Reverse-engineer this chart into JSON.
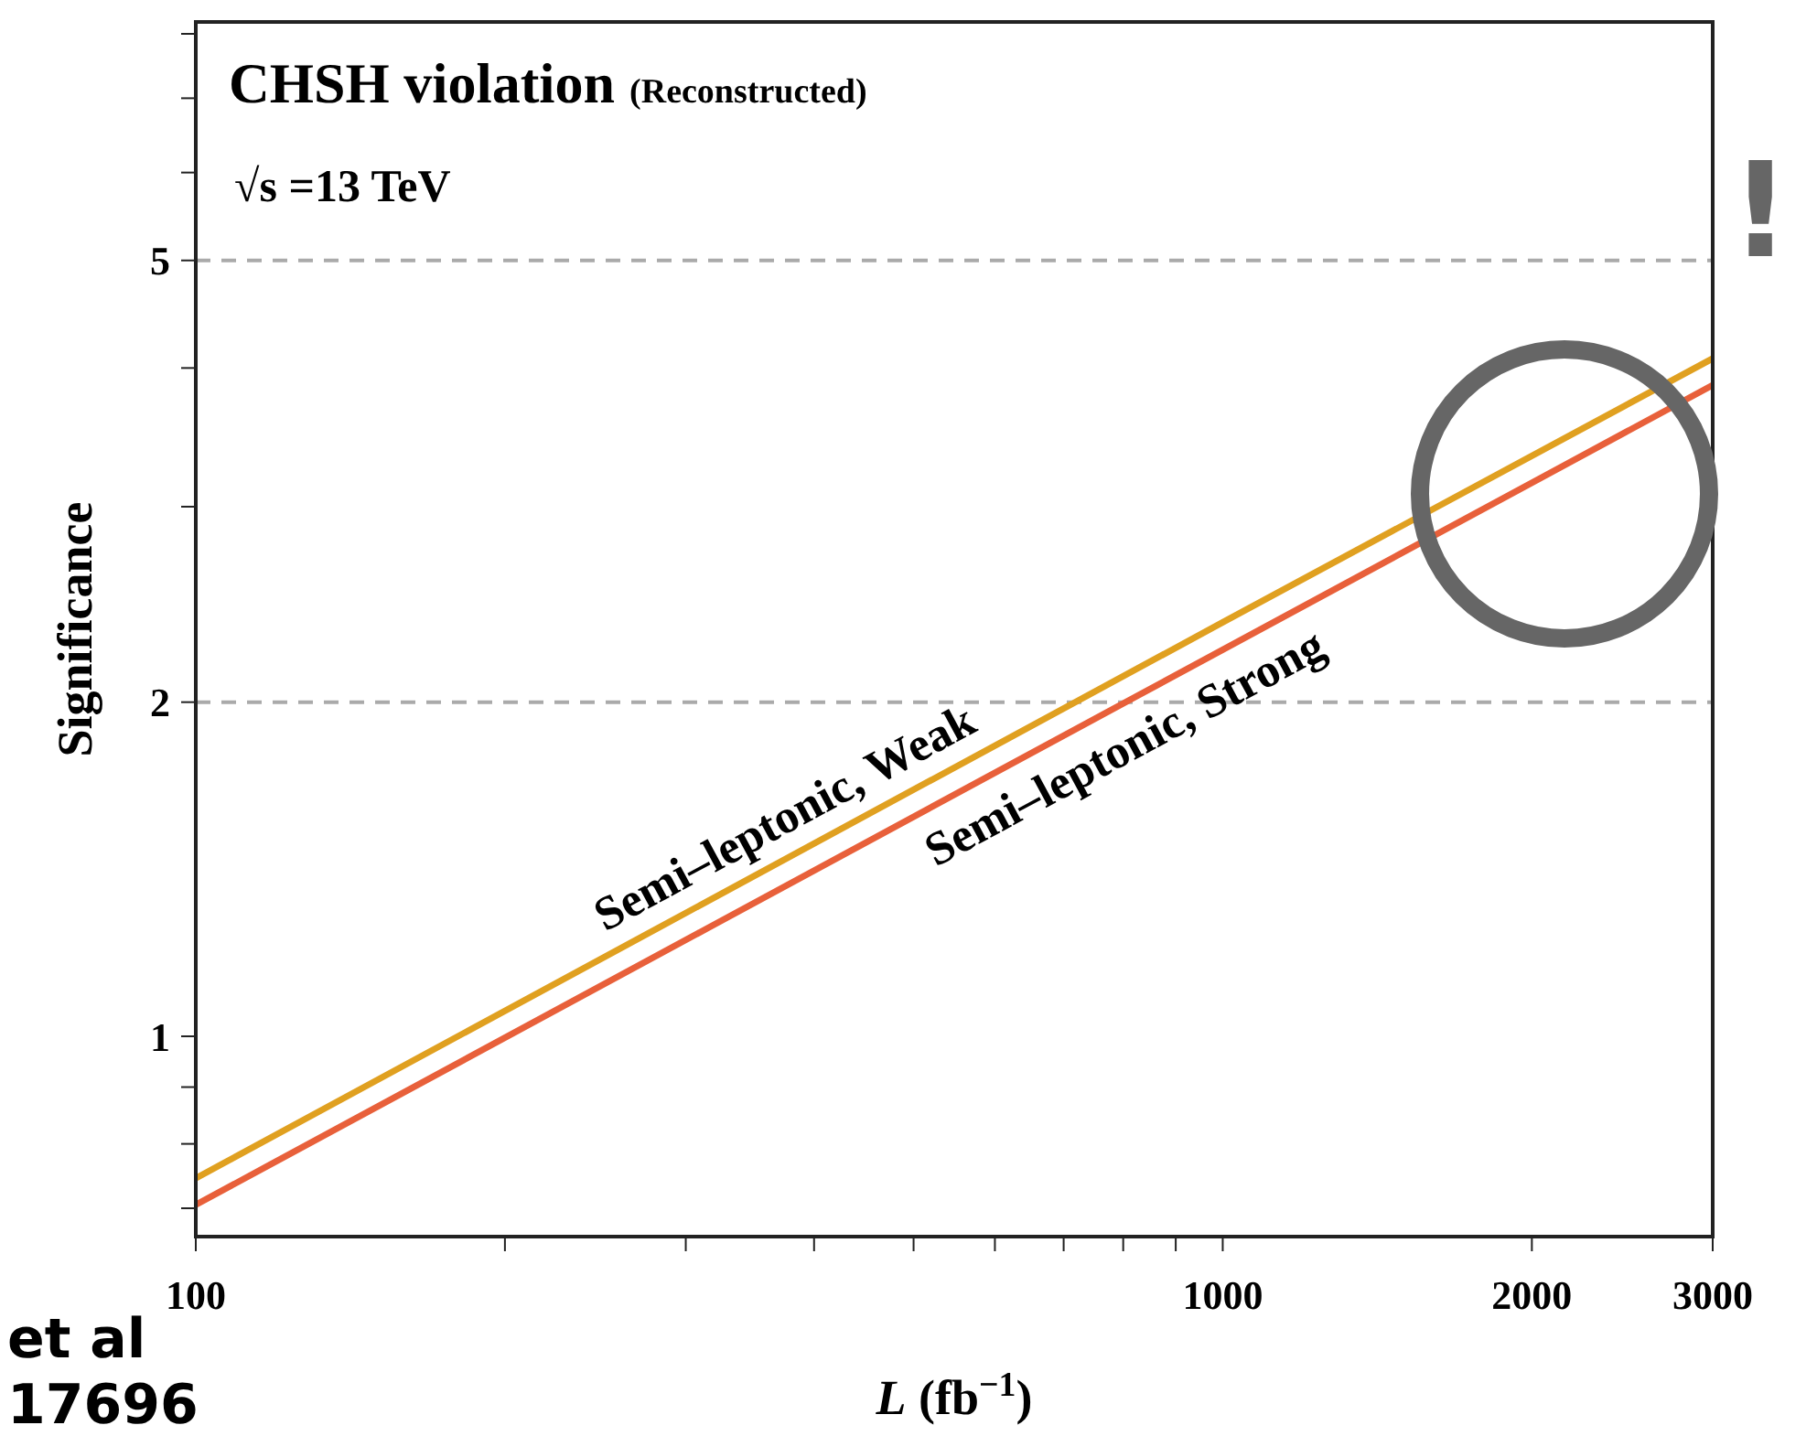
{
  "chart_data": {
    "type": "line",
    "title": "CHSH violation",
    "subtitle": "(Reconstructed)",
    "xlabel": "L (fb$^{−1}$)",
    "ylabel": "Significance",
    "annotations": [
      "√s =13 TeV",
      "!",
      "et al",
      "17696"
    ],
    "log": "xy",
    "xlim": [
      100,
      3000
    ],
    "xticks": [
      100,
      {
        "value": 200,
        "label": null
      },
      {
        "value": 300,
        "label": null
      },
      {
        "value": 400,
        "label": null
      },
      {
        "value": 500,
        "label": null
      },
      {
        "value": 600,
        "label": null
      },
      {
        "value": 700,
        "label": null
      },
      {
        "value": 800,
        "label": null
      },
      {
        "value": 900,
        "label": null
      },
      1000,
      2000,
      3000
    ],
    "ylim": [
      0.66,
      8.2
    ],
    "yticks": [
      {
        "value": 0.7,
        "label": null
      },
      {
        "value": 0.8,
        "label": null
      },
      {
        "value": 0.9,
        "label": null
      },
      1,
      2,
      {
        "value": 3,
        "label": null
      },
      {
        "value": 4,
        "label": null
      },
      5,
      {
        "value": 6,
        "label": null
      },
      {
        "value": 7,
        "label": null
      },
      {
        "value": 8,
        "label": null
      }
    ],
    "x": [
      100,
      1000,
      3000
    ],
    "series": [
      {
        "name": "Semi–leptonic, Weak",
        "color": "#e0a020",
        "values": [
          0.745,
          2.36,
          4.08
        ]
      },
      {
        "name": "Semi–leptonic, Strong",
        "color": "#e8603a",
        "values": [
          0.705,
          2.23,
          3.86
        ]
      }
    ],
    "ref_lines": [
      {
        "axis": "y",
        "value": 5,
        "label": null,
        "color": "#aaaaaa",
        "line_style": "dashed"
      },
      {
        "axis": "y",
        "value": 2,
        "label": null,
        "color": "#aaaaaa",
        "line_style": "dashed"
      }
    ],
    "line_style": "solid",
    "marker": "none",
    "grid": false,
    "legend": false
  }
}
